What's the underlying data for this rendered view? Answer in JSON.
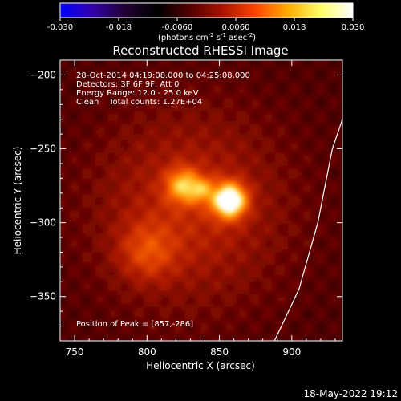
{
  "chart_data": {
    "type": "heatmap",
    "title": "Reconstructed RHESSI Image",
    "xlabel": "Heliocentric X (arcsec)",
    "ylabel": "Heliocentric Y (arcsec)",
    "xlim": [
      740,
      935
    ],
    "ylim": [
      -380,
      -190
    ],
    "xticks": [
      750,
      800,
      850,
      900
    ],
    "yticks": [
      -200,
      -250,
      -300,
      -350
    ],
    "colorbar": {
      "colormap": "hot-rhessi",
      "range": [
        -0.03,
        0.03
      ],
      "ticks": [
        "-0.030",
        "-0.018",
        "-0.0060",
        "0.0060",
        "0.018",
        "0.030"
      ],
      "label_parts": [
        "(photons cm",
        "-2",
        " s",
        "-1",
        " asec",
        "-2",
        ")"
      ],
      "stops": [
        "#0000ff",
        "#3300aa",
        "#220033",
        "#000000",
        "#550000",
        "#aa1500",
        "#ff4400",
        "#ffaa00",
        "#ffff66",
        "#ffffff"
      ]
    },
    "info_lines": [
      "28-Oct-2014 04:19:08.000 to 04:25:08.000",
      "Detectors: 3F 6F 9F, Att 0",
      "Energy Range: 12.0 - 25.0 keV",
      "Clean    Total counts: 1.27E+04"
    ],
    "peak_label": "Position of Peak = [857,-286]",
    "peak": {
      "x": 857,
      "y": -286
    },
    "sources": [
      {
        "x": 857,
        "y": -285,
        "amplitude": 1.0,
        "sigma": 8
      },
      {
        "x": 825,
        "y": -275,
        "amplitude": 0.55,
        "sigma": 8
      },
      {
        "x": 838,
        "y": -278,
        "amplitude": 0.35,
        "sigma": 6
      },
      {
        "x": 800,
        "y": -320,
        "amplitude": 0.28,
        "sigma": 14
      },
      {
        "x": 830,
        "y": -290,
        "amplitude": 0.3,
        "sigma": 45
      }
    ],
    "limb_curve": [
      {
        "x": 888,
        "y": -380
      },
      {
        "x": 905,
        "y": -345
      },
      {
        "x": 918,
        "y": -300
      },
      {
        "x": 928,
        "y": -250
      },
      {
        "x": 935,
        "y": -230
      }
    ]
  },
  "footer_timestamp": "18-May-2022 19:12",
  "colors": {
    "background": "#000000",
    "foreground": "#ffffff"
  }
}
